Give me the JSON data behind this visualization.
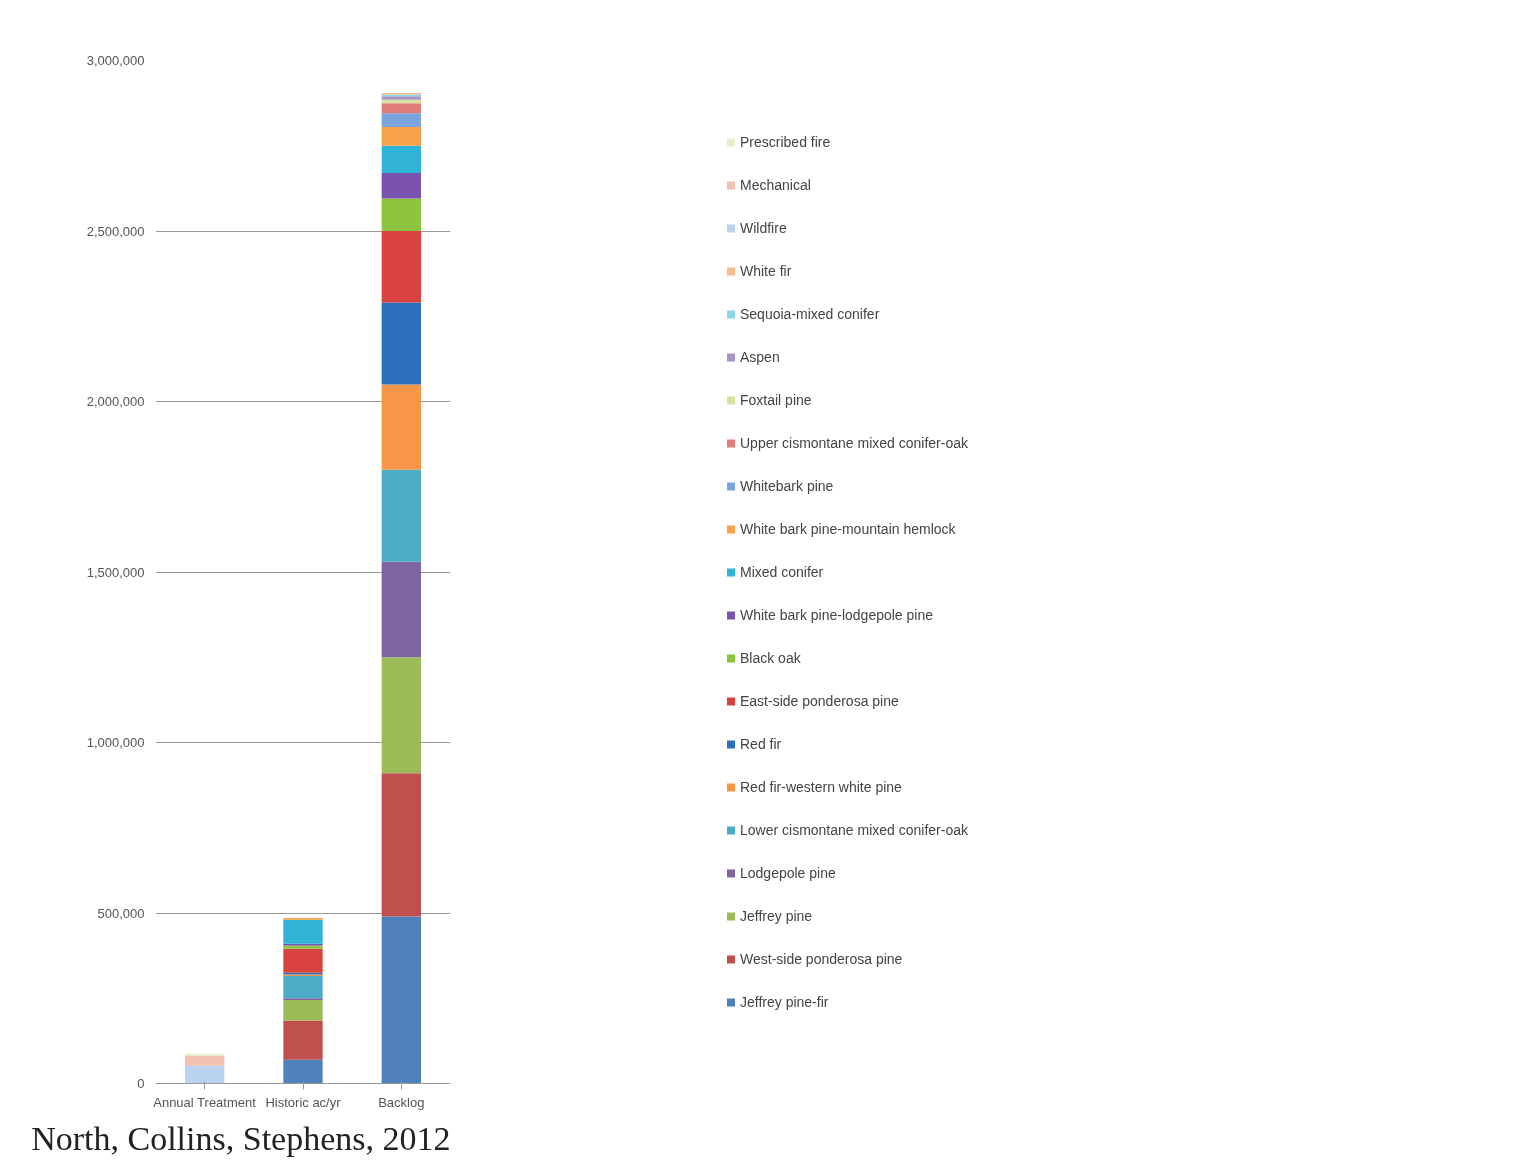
{
  "chart_data": {
    "type": "bar",
    "stacked": true,
    "categories": [
      "Annual Treatment",
      "Historic ac/yr",
      "Backlog"
    ],
    "ylim": [
      0,
      3000000
    ],
    "yticks": [
      {
        "value": 0,
        "label": "0"
      },
      {
        "value": 500000,
        "label": "500,000"
      },
      {
        "value": 1000000,
        "label": "1,000,000"
      },
      {
        "value": 1500000,
        "label": "1,500,000"
      },
      {
        "value": 2000000,
        "label": "2,000,000"
      },
      {
        "value": 2500000,
        "label": "2,500,000"
      },
      {
        "value": 3000000,
        "label": "3,000,000"
      }
    ],
    "grid": "y",
    "legend": "right",
    "annotations": [
      "North, Collins, Stephens, 2012"
    ],
    "series": [
      {
        "name": "Jeffrey pine-fir",
        "color": "#4f81bd",
        "values": [
          null,
          70000,
          490000
        ]
      },
      {
        "name": "West-side ponderosa pine",
        "color": "#c0504d",
        "values": [
          null,
          115000,
          420000
        ]
      },
      {
        "name": "Jeffrey pine",
        "color": "#9bbb59",
        "values": [
          null,
          60000,
          340000
        ]
      },
      {
        "name": "Lodgepole pine",
        "color": "#8064a2",
        "values": [
          null,
          5000,
          280000
        ]
      },
      {
        "name": "Lower cismontane mixed conifer-oak",
        "color": "#4bacc6",
        "values": [
          null,
          65000,
          270000
        ]
      },
      {
        "name": "Red fir-western white pine",
        "color": "#f79646",
        "values": [
          null,
          5000,
          250000
        ]
      },
      {
        "name": "Red fir",
        "color": "#2c6fbe",
        "values": [
          null,
          5000,
          240000
        ]
      },
      {
        "name": "East-side ponderosa pine",
        "color": "#d8423f",
        "values": [
          null,
          70000,
          210000
        ]
      },
      {
        "name": "Black oak",
        "color": "#8cc43f",
        "values": [
          null,
          10000,
          95000
        ]
      },
      {
        "name": "White bark pine-lodgepole pine",
        "color": "#7a52b0",
        "values": [
          null,
          5000,
          75000
        ]
      },
      {
        "name": "Mixed conifer",
        "color": "#2fb4d8",
        "values": [
          null,
          70000,
          80000
        ]
      },
      {
        "name": "White bark pine-mountain hemlock",
        "color": "#f7a14a",
        "values": [
          null,
          5000,
          55000
        ]
      },
      {
        "name": "Whitebark pine",
        "color": "#7ba4dd",
        "values": [
          null,
          null,
          40000
        ]
      },
      {
        "name": "Upper cismontane mixed conifer-oak",
        "color": "#e07c7a",
        "values": [
          null,
          null,
          30000
        ]
      },
      {
        "name": "Foxtail pine",
        "color": "#d7e4a0",
        "values": [
          null,
          null,
          10000
        ]
      },
      {
        "name": "Aspen",
        "color": "#a896c4",
        "values": [
          null,
          null,
          10000
        ]
      },
      {
        "name": "Sequoia-mixed conifer",
        "color": "#8fd3e6",
        "values": [
          null,
          null,
          5000
        ]
      },
      {
        "name": "White fir",
        "color": "#f9b98a",
        "values": [
          null,
          null,
          5000
        ]
      },
      {
        "name": "Wildfire",
        "color": "#b9d3f0",
        "values": [
          52000,
          null,
          null
        ]
      },
      {
        "name": "Mechanical",
        "color": "#f2c2b0",
        "values": [
          30000,
          null,
          null
        ]
      },
      {
        "name": "Prescribed fire",
        "color": "#e5efd0",
        "values": [
          5000,
          null,
          null
        ]
      }
    ]
  }
}
